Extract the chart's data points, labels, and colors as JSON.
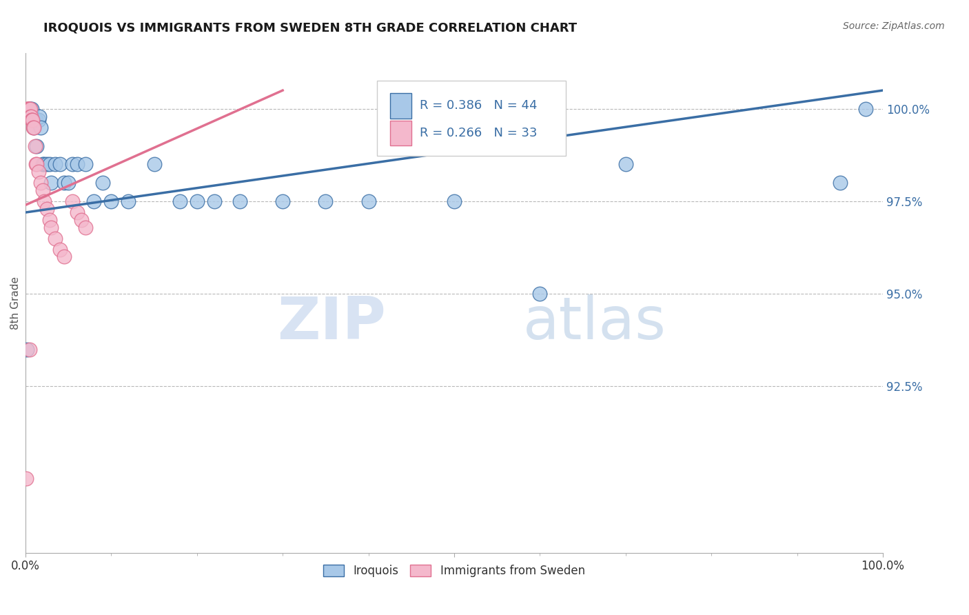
{
  "title": "IROQUOIS VS IMMIGRANTS FROM SWEDEN 8TH GRADE CORRELATION CHART",
  "source": "Source: ZipAtlas.com",
  "ylabel": "8th Grade",
  "ylabel_right_labels": [
    "100.0%",
    "97.5%",
    "95.0%",
    "92.5%"
  ],
  "ylabel_right_values": [
    100.0,
    97.5,
    95.0,
    92.5
  ],
  "xlim": [
    0.0,
    100.0
  ],
  "ylim": [
    88.0,
    101.5
  ],
  "legend_r1": "R = 0.386",
  "legend_n1": "N = 44",
  "legend_r2": "R = 0.266",
  "legend_n2": "N = 33",
  "color_iroquois": "#a8c8e8",
  "color_sweden": "#f4b8cc",
  "color_iroquois_line": "#3a6ea5",
  "color_sweden_line": "#e07090",
  "watermark_zip": "ZIP",
  "watermark_atlas": "atlas",
  "iroquois_x": [
    0.2,
    0.3,
    0.4,
    0.5,
    0.6,
    0.7,
    0.8,
    0.9,
    1.0,
    1.1,
    1.2,
    1.3,
    1.5,
    1.6,
    1.8,
    2.0,
    2.2,
    2.5,
    2.8,
    3.0,
    3.5,
    4.0,
    4.5,
    5.0,
    5.5,
    6.0,
    7.0,
    8.0,
    9.0,
    10.0,
    12.0,
    15.0,
    18.0,
    20.0,
    22.0,
    25.0,
    30.0,
    35.0,
    40.0,
    50.0,
    60.0,
    70.0,
    95.0,
    98.0
  ],
  "iroquois_y": [
    93.5,
    99.8,
    99.8,
    100.0,
    100.0,
    100.0,
    99.7,
    99.7,
    99.5,
    99.7,
    99.7,
    99.0,
    99.7,
    99.8,
    99.5,
    98.5,
    98.5,
    98.5,
    98.5,
    98.0,
    98.5,
    98.5,
    98.0,
    98.0,
    98.5,
    98.5,
    98.5,
    97.5,
    98.0,
    97.5,
    97.5,
    98.5,
    97.5,
    97.5,
    97.5,
    97.5,
    97.5,
    97.5,
    97.5,
    97.5,
    95.0,
    98.5,
    98.0,
    100.0
  ],
  "sweden_x": [
    0.1,
    0.2,
    0.25,
    0.3,
    0.35,
    0.4,
    0.5,
    0.55,
    0.6,
    0.65,
    0.7,
    0.75,
    0.8,
    0.9,
    1.0,
    1.1,
    1.2,
    1.3,
    1.5,
    1.8,
    2.0,
    2.2,
    2.5,
    2.8,
    3.0,
    3.5,
    4.0,
    4.5,
    5.5,
    6.0,
    6.5,
    7.0,
    0.5
  ],
  "sweden_y": [
    90.0,
    100.0,
    100.0,
    100.0,
    100.0,
    100.0,
    100.0,
    100.0,
    99.8,
    99.8,
    99.7,
    99.7,
    99.7,
    99.5,
    99.5,
    99.0,
    98.5,
    98.5,
    98.3,
    98.0,
    97.8,
    97.5,
    97.3,
    97.0,
    96.8,
    96.5,
    96.2,
    96.0,
    97.5,
    97.2,
    97.0,
    96.8,
    93.5
  ],
  "irq_line_x": [
    0.0,
    100.0
  ],
  "irq_line_y": [
    97.2,
    100.5
  ],
  "swe_line_x": [
    0.0,
    30.0
  ],
  "swe_line_y": [
    97.4,
    100.5
  ]
}
